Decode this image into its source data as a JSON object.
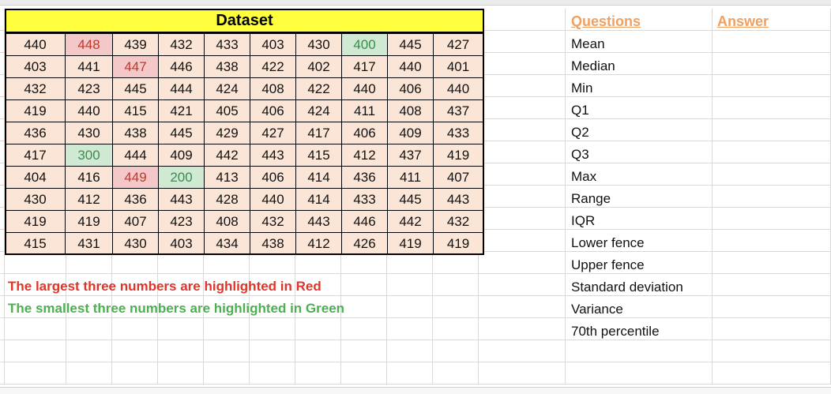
{
  "dataset": {
    "title": "Dataset",
    "rows": [
      [
        "440",
        "448",
        "439",
        "432",
        "433",
        "403",
        "430",
        "400",
        "445",
        "427"
      ],
      [
        "403",
        "441",
        "447",
        "446",
        "438",
        "422",
        "402",
        "417",
        "440",
        "401"
      ],
      [
        "432",
        "423",
        "445",
        "444",
        "424",
        "408",
        "422",
        "440",
        "406",
        "440"
      ],
      [
        "419",
        "440",
        "415",
        "421",
        "405",
        "406",
        "424",
        "411",
        "408",
        "437"
      ],
      [
        "436",
        "430",
        "438",
        "445",
        "429",
        "427",
        "417",
        "406",
        "409",
        "433"
      ],
      [
        "417",
        "300",
        "444",
        "409",
        "442",
        "443",
        "415",
        "412",
        "437",
        "419"
      ],
      [
        "404",
        "416",
        "449",
        "200",
        "413",
        "406",
        "414",
        "436",
        "411",
        "407"
      ],
      [
        "430",
        "412",
        "436",
        "443",
        "428",
        "440",
        "414",
        "433",
        "445",
        "443"
      ],
      [
        "419",
        "419",
        "407",
        "423",
        "408",
        "432",
        "443",
        "446",
        "442",
        "432"
      ],
      [
        "415",
        "431",
        "430",
        "403",
        "434",
        "438",
        "412",
        "426",
        "419",
        "419"
      ]
    ],
    "highlight_red": [
      [
        0,
        1
      ],
      [
        1,
        2
      ],
      [
        6,
        2
      ]
    ],
    "highlight_green": [
      [
        0,
        7
      ],
      [
        5,
        1
      ],
      [
        6,
        3
      ]
    ],
    "highlight_colors": {
      "red_fill": "#f4c7c9",
      "red_text": "#c0392b",
      "green_fill": "#cfe9d2",
      "green_text": "#3a8d4f",
      "cell_fill": "#fbe5d6",
      "title_fill": "#ffff3d"
    }
  },
  "notes": {
    "red": "The largest three numbers are highlighted in Red",
    "green": "The smallest three numbers are highlighted in Green",
    "red_color": "#e0342a",
    "green_color": "#4caf50"
  },
  "questions": {
    "header": "Questions",
    "items": [
      "Mean",
      "Median",
      "Min",
      "Q1",
      "Q2",
      "Q3",
      "Max",
      "Range",
      "IQR",
      "Lower fence",
      "Upper fence",
      "Standard deviation",
      "Variance",
      "70th percentile"
    ]
  },
  "answers": {
    "header": "Answer",
    "header_color": "#f0a060"
  }
}
